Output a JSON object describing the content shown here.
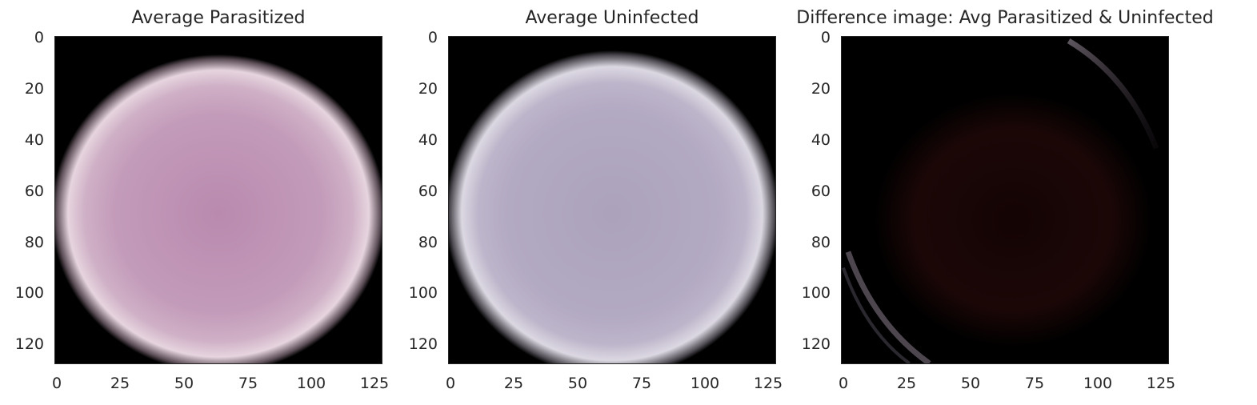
{
  "panels": [
    {
      "title": "Average Parasitized",
      "image": "average-parasitized-cell",
      "yticks": [
        "0",
        "20",
        "40",
        "60",
        "80",
        "100",
        "120"
      ],
      "xticks": [
        "0",
        "25",
        "50",
        "75",
        "100",
        "125"
      ],
      "colors": {
        "center": "#b98aae",
        "mid": "#c9a2bf",
        "edge": "#e9d9e0",
        "background": "#000000"
      }
    },
    {
      "title": "Average Uninfected",
      "image": "average-uninfected-cell",
      "yticks": [
        "0",
        "20",
        "40",
        "60",
        "80",
        "100",
        "120"
      ],
      "xticks": [
        "0",
        "25",
        "50",
        "75",
        "100",
        "125"
      ],
      "colors": {
        "center": "#aca2bc",
        "mid": "#b7aec6",
        "edge": "#e2dfe7",
        "background": "#000000"
      }
    },
    {
      "title": "Difference image: Avg Parasitized & Uninfected",
      "image": "difference-image",
      "yticks": [
        "0",
        "20",
        "40",
        "60",
        "80",
        "100",
        "120"
      ],
      "xticks": [
        "0",
        "25",
        "50",
        "75",
        "100",
        "125"
      ],
      "colors": {
        "center": "#1a0606",
        "edge": "#7a6e7a",
        "background": "#000000"
      }
    }
  ]
}
